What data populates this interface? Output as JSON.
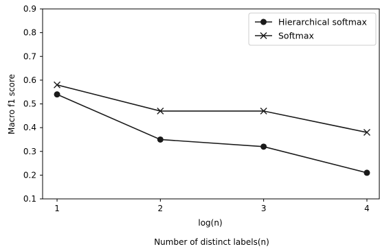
{
  "chart_data": {
    "type": "line",
    "x": [
      1,
      2,
      3,
      4
    ],
    "xticks": [
      1,
      2,
      3,
      4
    ],
    "xlim": [
      0.86,
      4.12
    ],
    "ylim": [
      0.1,
      0.9
    ],
    "yticks": [
      0.1,
      0.2,
      0.3,
      0.4,
      0.5,
      0.6,
      0.7,
      0.8,
      0.9
    ],
    "xlabel": "log(n)",
    "ylabel": "Macro f1 score",
    "grid": false,
    "legend_position": "top-right",
    "series": [
      {
        "name": "Hierarchical softmax",
        "marker": "circle",
        "color": "#1a1a1a",
        "values": [
          0.54,
          0.35,
          0.32,
          0.21
        ]
      },
      {
        "name": "Softmax",
        "marker": "x",
        "color": "#1a1a1a",
        "values": [
          0.58,
          0.47,
          0.47,
          0.38
        ]
      }
    ]
  },
  "caption": "Number of distinct labels(n)"
}
